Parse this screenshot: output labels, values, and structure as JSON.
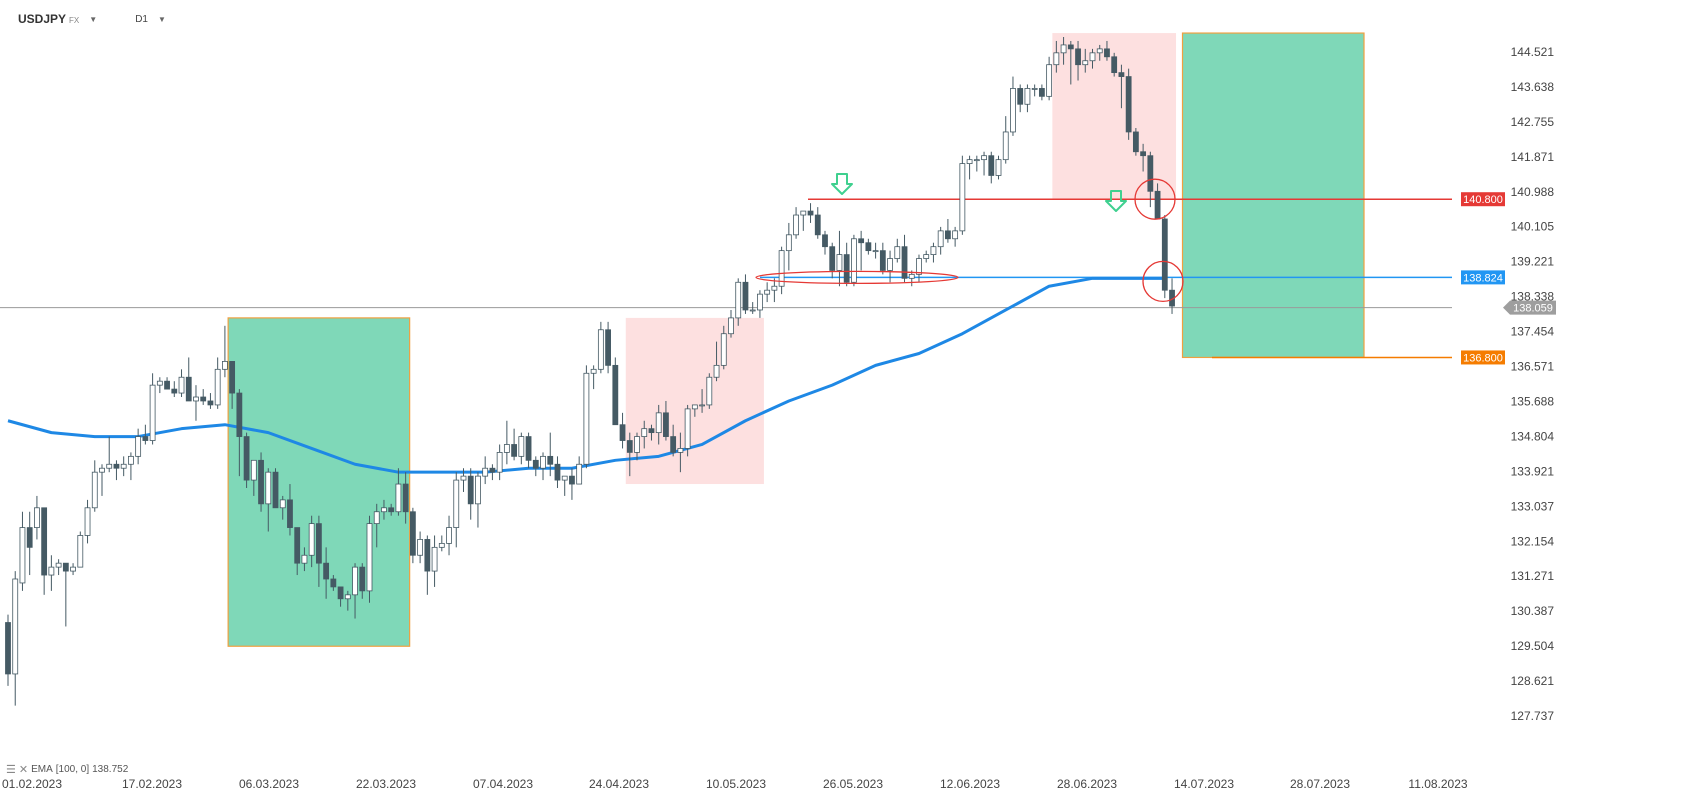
{
  "toolbar": {
    "symbol": "USDJPY",
    "market": "FX",
    "interval": "D1",
    "symbol_menu_icon": "chevron-down-icon",
    "interval_menu_icon": "chevron-down-icon"
  },
  "indicator": {
    "name": "EMA",
    "params": "[100, 0]",
    "value": "138.752",
    "icons": [
      "settings-icon",
      "close-icon"
    ]
  },
  "y_axis": {
    "ticks": [
      "144.521",
      "143.638",
      "142.755",
      "141.871",
      "140.988",
      "140.105",
      "139.221",
      "138.338",
      "137.454",
      "136.571",
      "135.688",
      "134.804",
      "133.921",
      "133.037",
      "132.154",
      "131.271",
      "130.387",
      "129.504",
      "128.621",
      "127.737"
    ]
  },
  "x_axis": {
    "ticks": [
      "01.02.2023",
      "17.02.2023",
      "06.03.2023",
      "22.03.2023",
      "07.04.2023",
      "24.04.2023",
      "10.05.2023",
      "26.05.2023",
      "12.06.2023",
      "28.06.2023",
      "14.07.2023",
      "28.07.2023",
      "11.08.2023"
    ]
  },
  "price_labels": {
    "resistance": {
      "value": "140.800",
      "color": "#e53935"
    },
    "support": {
      "value": "138.824",
      "color": "#2196f3"
    },
    "target": {
      "value": "136.800",
      "color": "#f57c00"
    },
    "current": {
      "value": "138.059",
      "color": "#9e9e9e"
    }
  },
  "colors": {
    "up_candle": "#ffffff",
    "down_candle": "#455a64",
    "ema": "#1e88e5",
    "green_zone": "#7fd8b8",
    "red_zone": "#fde0e0",
    "zone_border": "#f0a040",
    "signal_arrow": "#3fd08f"
  },
  "chart_data": {
    "type": "candlestick",
    "instrument": "USDJPY",
    "timeframe": "D1",
    "ylim": [
      127.737,
      144.521
    ],
    "candles": [
      [
        130.1,
        130.3,
        128.5,
        128.8
      ],
      [
        128.8,
        131.4,
        128.0,
        131.2
      ],
      [
        131.1,
        132.9,
        130.9,
        132.5
      ],
      [
        132.5,
        132.9,
        131.3,
        132.0
      ],
      [
        132.5,
        133.3,
        132.2,
        133.0
      ],
      [
        133.0,
        133.0,
        130.8,
        131.3
      ],
      [
        131.3,
        131.8,
        130.9,
        131.5
      ],
      [
        131.5,
        131.7,
        131.3,
        131.6
      ],
      [
        131.6,
        131.6,
        130.0,
        131.4
      ],
      [
        131.4,
        131.6,
        131.3,
        131.5
      ],
      [
        131.5,
        132.4,
        131.5,
        132.3
      ],
      [
        132.3,
        133.2,
        132.1,
        133.0
      ],
      [
        133.0,
        134.2,
        132.9,
        133.9
      ],
      [
        133.9,
        134.1,
        133.3,
        134.0
      ],
      [
        134.0,
        134.8,
        133.9,
        134.1
      ],
      [
        134.1,
        134.2,
        133.7,
        134.0
      ],
      [
        134.0,
        134.3,
        133.8,
        134.1
      ],
      [
        134.1,
        134.4,
        133.7,
        134.3
      ],
      [
        134.3,
        135.0,
        134.1,
        134.8
      ],
      [
        134.8,
        135.1,
        134.6,
        134.7
      ],
      [
        134.7,
        136.4,
        134.6,
        136.1
      ],
      [
        136.1,
        136.3,
        135.9,
        136.2
      ],
      [
        136.2,
        136.3,
        136.0,
        136.0
      ],
      [
        136.0,
        136.2,
        135.8,
        135.9
      ],
      [
        135.9,
        136.5,
        135.8,
        136.3
      ],
      [
        136.3,
        136.8,
        135.8,
        135.7
      ],
      [
        135.7,
        136.1,
        135.2,
        135.8
      ],
      [
        135.8,
        136.0,
        135.6,
        135.7
      ],
      [
        135.7,
        135.9,
        135.5,
        135.6
      ],
      [
        135.6,
        136.8,
        135.5,
        136.5
      ],
      [
        136.5,
        137.6,
        136.3,
        136.7
      ],
      [
        136.7,
        136.7,
        135.5,
        135.9
      ],
      [
        135.9,
        136.0,
        133.8,
        134.8
      ],
      [
        134.8,
        134.9,
        133.5,
        133.7
      ],
      [
        133.7,
        134.2,
        133.3,
        134.2
      ],
      [
        134.2,
        134.4,
        132.9,
        133.1
      ],
      [
        133.1,
        134.0,
        132.4,
        133.9
      ],
      [
        133.9,
        134.0,
        133.0,
        133.0
      ],
      [
        133.0,
        133.3,
        132.7,
        133.2
      ],
      [
        133.2,
        133.6,
        132.3,
        132.5
      ],
      [
        132.5,
        132.5,
        131.3,
        131.6
      ],
      [
        131.6,
        132.0,
        131.4,
        131.8
      ],
      [
        131.8,
        132.8,
        131.5,
        132.6
      ],
      [
        132.6,
        132.8,
        131.0,
        131.6
      ],
      [
        131.6,
        132.0,
        130.7,
        131.2
      ],
      [
        131.2,
        131.3,
        130.9,
        131.0
      ],
      [
        131.0,
        131.0,
        130.5,
        130.7
      ],
      [
        130.7,
        130.9,
        130.4,
        130.8
      ],
      [
        130.8,
        131.6,
        130.2,
        131.5
      ],
      [
        131.5,
        131.6,
        130.7,
        130.9
      ],
      [
        130.9,
        132.8,
        130.6,
        132.6
      ],
      [
        132.6,
        133.1,
        132.0,
        132.9
      ],
      [
        132.9,
        133.2,
        132.7,
        133.0
      ],
      [
        133.0,
        133.1,
        132.8,
        132.9
      ],
      [
        132.9,
        134.0,
        132.8,
        133.6
      ],
      [
        133.6,
        133.9,
        132.6,
        132.9
      ],
      [
        132.9,
        133.0,
        131.6,
        131.8
      ],
      [
        131.8,
        132.4,
        131.6,
        132.2
      ],
      [
        132.2,
        132.3,
        130.8,
        131.4
      ],
      [
        131.4,
        132.3,
        131.0,
        132.0
      ],
      [
        132.0,
        132.3,
        131.9,
        132.1
      ],
      [
        132.1,
        132.8,
        131.8,
        132.5
      ],
      [
        132.5,
        133.9,
        132.0,
        133.7
      ],
      [
        133.7,
        134.0,
        133.4,
        133.8
      ],
      [
        133.8,
        134.0,
        132.7,
        133.1
      ],
      [
        133.1,
        133.9,
        132.5,
        133.8
      ],
      [
        133.8,
        134.3,
        133.6,
        134.0
      ],
      [
        134.0,
        134.1,
        133.7,
        133.9
      ],
      [
        133.9,
        134.6,
        133.7,
        134.4
      ],
      [
        134.4,
        135.2,
        134.1,
        134.6
      ],
      [
        134.6,
        135.0,
        134.2,
        134.3
      ],
      [
        134.3,
        134.9,
        134.1,
        134.8
      ],
      [
        134.8,
        134.9,
        134.0,
        134.2
      ],
      [
        134.2,
        134.3,
        133.8,
        134.0
      ],
      [
        134.0,
        134.4,
        133.7,
        134.3
      ],
      [
        134.3,
        134.9,
        133.8,
        134.1
      ],
      [
        134.1,
        134.3,
        133.5,
        133.7
      ],
      [
        133.7,
        133.8,
        133.3,
        133.8
      ],
      [
        133.8,
        134.0,
        133.2,
        133.6
      ],
      [
        133.6,
        134.3,
        133.6,
        134.1
      ],
      [
        134.1,
        136.6,
        134.0,
        136.4
      ],
      [
        136.4,
        136.6,
        136.0,
        136.5
      ],
      [
        136.5,
        137.7,
        136.4,
        137.5
      ],
      [
        137.5,
        137.7,
        136.4,
        136.6
      ],
      [
        136.6,
        136.8,
        135.2,
        135.1
      ],
      [
        135.1,
        135.4,
        134.5,
        134.7
      ],
      [
        134.7,
        134.9,
        133.8,
        134.4
      ],
      [
        134.4,
        134.9,
        134.2,
        134.8
      ],
      [
        134.8,
        135.2,
        134.5,
        135.0
      ],
      [
        135.0,
        135.1,
        134.7,
        134.9
      ],
      [
        134.9,
        135.6,
        134.6,
        135.4
      ],
      [
        135.4,
        135.7,
        134.7,
        134.8
      ],
      [
        134.8,
        135.1,
        134.3,
        134.4
      ],
      [
        134.4,
        134.9,
        133.9,
        134.5
      ],
      [
        134.5,
        135.6,
        134.3,
        135.5
      ],
      [
        135.5,
        135.6,
        135.3,
        135.6
      ],
      [
        135.6,
        136.0,
        135.4,
        135.6
      ],
      [
        135.6,
        136.4,
        135.5,
        136.3
      ],
      [
        136.3,
        137.2,
        136.2,
        136.6
      ],
      [
        136.6,
        137.6,
        136.5,
        137.4
      ],
      [
        137.4,
        138.0,
        137.3,
        137.8
      ],
      [
        137.8,
        138.8,
        137.6,
        138.7
      ],
      [
        138.7,
        138.9,
        137.9,
        138.0
      ],
      [
        138.0,
        138.2,
        137.9,
        138.0
      ],
      [
        138.0,
        138.5,
        137.8,
        138.4
      ],
      [
        138.4,
        138.7,
        138.2,
        138.5
      ],
      [
        138.5,
        138.8,
        138.2,
        138.6
      ],
      [
        138.6,
        139.6,
        138.4,
        139.5
      ],
      [
        139.5,
        140.2,
        139.0,
        139.9
      ],
      [
        139.9,
        140.6,
        139.8,
        140.4
      ],
      [
        140.4,
        140.5,
        140.0,
        140.5
      ],
      [
        140.5,
        140.7,
        140.2,
        140.4
      ],
      [
        140.4,
        140.6,
        139.8,
        139.9
      ],
      [
        139.9,
        140.0,
        139.4,
        139.6
      ],
      [
        139.6,
        139.7,
        138.8,
        139.0
      ],
      [
        139.0,
        140.0,
        138.6,
        139.4
      ],
      [
        139.4,
        139.7,
        138.6,
        138.7
      ],
      [
        138.7,
        139.9,
        138.6,
        139.8
      ],
      [
        139.8,
        140.0,
        139.0,
        139.7
      ],
      [
        139.7,
        139.8,
        139.4,
        139.5
      ],
      [
        139.5,
        139.7,
        139.3,
        139.5
      ],
      [
        139.5,
        139.7,
        138.9,
        139.0
      ],
      [
        139.0,
        139.5,
        138.7,
        139.3
      ],
      [
        139.3,
        139.8,
        139.2,
        139.6
      ],
      [
        139.6,
        139.9,
        138.7,
        138.8
      ],
      [
        138.8,
        139.0,
        138.6,
        138.9
      ],
      [
        138.9,
        139.4,
        138.7,
        139.3
      ],
      [
        139.3,
        139.5,
        139.2,
        139.4
      ],
      [
        139.4,
        139.7,
        139.2,
        139.6
      ],
      [
        139.6,
        140.1,
        139.4,
        140.0
      ],
      [
        140.0,
        140.3,
        139.7,
        139.8
      ],
      [
        139.8,
        140.1,
        139.6,
        140.0
      ],
      [
        140.0,
        141.9,
        139.9,
        141.7
      ],
      [
        141.7,
        141.9,
        141.3,
        141.8
      ],
      [
        141.8,
        141.9,
        141.5,
        141.8
      ],
      [
        141.8,
        142.0,
        141.4,
        141.9
      ],
      [
        141.9,
        142.0,
        141.2,
        141.4
      ],
      [
        141.4,
        141.9,
        141.3,
        141.8
      ],
      [
        141.8,
        142.9,
        141.7,
        142.5
      ],
      [
        142.5,
        143.9,
        142.4,
        143.6
      ],
      [
        143.6,
        143.7,
        143.0,
        143.2
      ],
      [
        143.2,
        143.7,
        143.0,
        143.6
      ],
      [
        143.6,
        143.7,
        143.4,
        143.6
      ],
      [
        143.6,
        143.7,
        143.3,
        143.4
      ],
      [
        143.4,
        144.4,
        143.3,
        144.2
      ],
      [
        144.2,
        144.8,
        144.0,
        144.5
      ],
      [
        144.5,
        144.9,
        144.2,
        144.7
      ],
      [
        144.7,
        144.8,
        143.7,
        144.6
      ],
      [
        144.6,
        144.8,
        143.8,
        144.2
      ],
      [
        144.2,
        144.6,
        144.0,
        144.3
      ],
      [
        144.3,
        144.6,
        144.1,
        144.5
      ],
      [
        144.5,
        144.7,
        144.3,
        144.6
      ],
      [
        144.6,
        144.8,
        144.3,
        144.4
      ],
      [
        144.4,
        144.5,
        143.9,
        144.0
      ],
      [
        144.0,
        144.2,
        143.1,
        143.9
      ],
      [
        143.9,
        144.1,
        142.3,
        142.5
      ],
      [
        142.5,
        142.6,
        141.9,
        142.0
      ],
      [
        142.0,
        142.2,
        141.5,
        141.9
      ],
      [
        141.9,
        142.0,
        140.6,
        141.0
      ],
      [
        141.0,
        141.2,
        140.3,
        140.3
      ],
      [
        140.3,
        140.4,
        138.3,
        138.5
      ],
      [
        138.5,
        138.8,
        137.9,
        138.1
      ]
    ],
    "ema": {
      "name": "EMA [100, 0]",
      "points": [
        [
          0,
          135.2
        ],
        [
          6,
          134.9
        ],
        [
          12,
          134.8
        ],
        [
          18,
          134.8
        ],
        [
          24,
          135.0
        ],
        [
          30,
          135.1
        ],
        [
          36,
          134.9
        ],
        [
          42,
          134.5
        ],
        [
          48,
          134.1
        ],
        [
          54,
          133.9
        ],
        [
          60,
          133.9
        ],
        [
          66,
          133.9
        ],
        [
          72,
          134.0
        ],
        [
          78,
          134.0
        ],
        [
          84,
          134.2
        ],
        [
          90,
          134.3
        ],
        [
          96,
          134.6
        ],
        [
          102,
          135.2
        ],
        [
          108,
          135.7
        ],
        [
          114,
          136.1
        ],
        [
          120,
          136.6
        ],
        [
          126,
          136.9
        ],
        [
          132,
          137.4
        ],
        [
          138,
          138.0
        ],
        [
          144,
          138.6
        ],
        [
          150,
          138.8
        ],
        [
          156,
          138.8
        ],
        [
          160,
          138.8
        ]
      ]
    },
    "levels": [
      {
        "label": "140.800",
        "value": 140.8,
        "color": "#e53935"
      },
      {
        "label": "138.824",
        "value": 138.824,
        "color": "#2196f3"
      },
      {
        "label": "136.800",
        "value": 136.8,
        "color": "#f57c00"
      },
      {
        "label": "138.059",
        "value": 138.059,
        "color": "#9e9e9e"
      }
    ],
    "zones": [
      {
        "kind": "green",
        "x_from": 31,
        "x_to": 55,
        "y_from": 137.8,
        "y_to": 129.5
      },
      {
        "kind": "red",
        "x_from": 86,
        "x_to": 104,
        "y_from": 137.8,
        "y_to": 133.6
      },
      {
        "kind": "red",
        "x_from": 145,
        "x_to": 161,
        "y_from": 145.0,
        "y_to": 140.8
      },
      {
        "kind": "green",
        "x_from": 163,
        "x_to": 187,
        "y_from": 145.0,
        "y_to": 136.8
      }
    ]
  }
}
